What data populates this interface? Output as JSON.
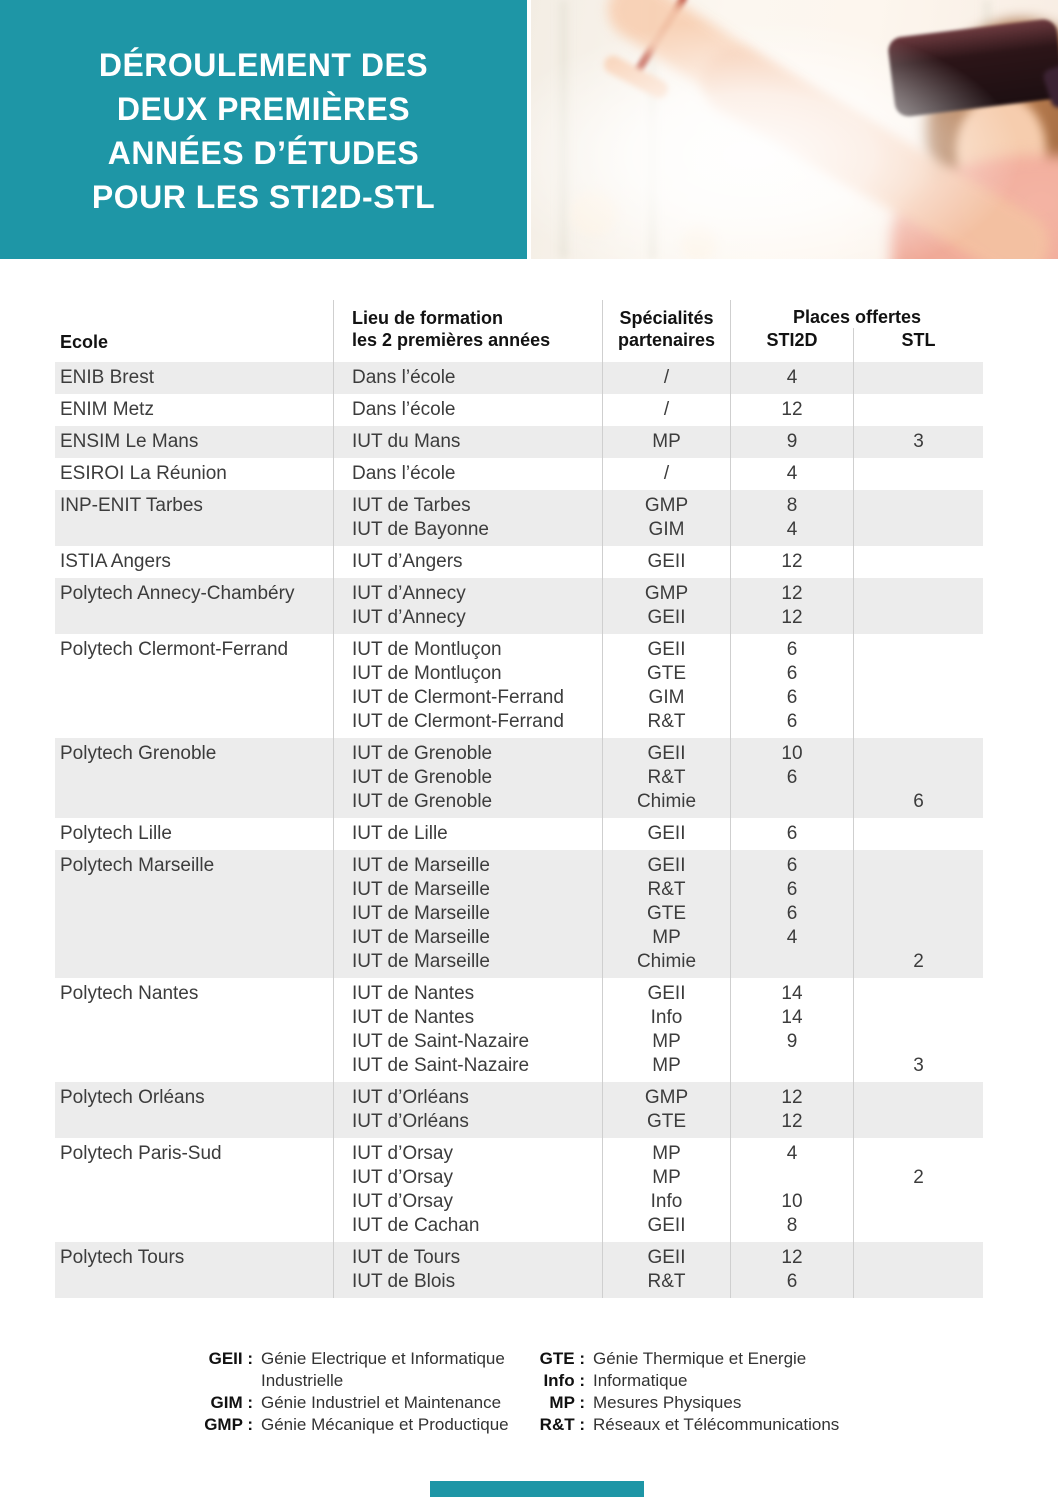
{
  "theme": {
    "accent_color": "#1e96a6",
    "row_shade_color": "#ececec",
    "divider_color": "#cfcfcf"
  },
  "header": {
    "title": "DÉROULEMENT DES\nDEUX PREMIÈRES\nANNÉES D’ÉTUDES\nPOUR LES STI2D-STL"
  },
  "table": {
    "columns": {
      "ecole": "Ecole",
      "lieu": "Lieu de formation\nles 2 premières années",
      "specialites": "Spécialités\npartenaires",
      "places": "Places offertes",
      "sti2d": "STI2D",
      "stl": "STL"
    },
    "rows": [
      {
        "ecole": "ENIB Brest",
        "shaded": true,
        "lines": [
          {
            "lieu": "Dans l’école",
            "spec": "/",
            "sti2d": "4",
            "stl": ""
          }
        ]
      },
      {
        "ecole": "ENIM Metz",
        "shaded": false,
        "lines": [
          {
            "lieu": "Dans l’école",
            "spec": "/",
            "sti2d": "12",
            "stl": ""
          }
        ]
      },
      {
        "ecole": "ENSIM Le Mans",
        "shaded": true,
        "lines": [
          {
            "lieu": "IUT du Mans",
            "spec": "MP",
            "sti2d": "9",
            "stl": "3"
          }
        ]
      },
      {
        "ecole": "ESIROI La Réunion",
        "shaded": false,
        "lines": [
          {
            "lieu": "Dans l’école",
            "spec": "/",
            "sti2d": "4",
            "stl": ""
          }
        ]
      },
      {
        "ecole": "INP-ENIT Tarbes",
        "shaded": true,
        "lines": [
          {
            "lieu": "IUT de Tarbes",
            "spec": "GMP",
            "sti2d": "8",
            "stl": ""
          },
          {
            "lieu": "IUT de Bayonne",
            "spec": "GIM",
            "sti2d": "4",
            "stl": ""
          }
        ]
      },
      {
        "ecole": "ISTIA Angers",
        "shaded": false,
        "lines": [
          {
            "lieu": "IUT d’Angers",
            "spec": "GEII",
            "sti2d": "12",
            "stl": ""
          }
        ]
      },
      {
        "ecole": "Polytech Annecy-Chambéry",
        "shaded": true,
        "lines": [
          {
            "lieu": "IUT d’Annecy",
            "spec": "GMP",
            "sti2d": "12",
            "stl": ""
          },
          {
            "lieu": "IUT d’Annecy",
            "spec": "GEII",
            "sti2d": "12",
            "stl": ""
          }
        ]
      },
      {
        "ecole": "Polytech Clermont-Ferrand",
        "shaded": false,
        "lines": [
          {
            "lieu": "IUT de Montluçon",
            "spec": "GEII",
            "sti2d": "6",
            "stl": ""
          },
          {
            "lieu": "IUT de Montluçon",
            "spec": "GTE",
            "sti2d": "6",
            "stl": ""
          },
          {
            "lieu": "IUT de Clermont-Ferrand",
            "spec": "GIM",
            "sti2d": "6",
            "stl": ""
          },
          {
            "lieu": "IUT de Clermont-Ferrand",
            "spec": "R&T",
            "sti2d": "6",
            "stl": ""
          }
        ]
      },
      {
        "ecole": "Polytech Grenoble",
        "shaded": true,
        "lines": [
          {
            "lieu": "IUT de Grenoble",
            "spec": "GEII",
            "sti2d": "10",
            "stl": ""
          },
          {
            "lieu": "IUT de Grenoble",
            "spec": "R&T",
            "sti2d": "6",
            "stl": ""
          },
          {
            "lieu": "IUT de Grenoble",
            "spec": "Chimie",
            "sti2d": "",
            "stl": "6"
          }
        ]
      },
      {
        "ecole": "Polytech Lille",
        "shaded": false,
        "lines": [
          {
            "lieu": "IUT de Lille",
            "spec": "GEII",
            "sti2d": "6",
            "stl": ""
          }
        ]
      },
      {
        "ecole": "Polytech Marseille",
        "shaded": true,
        "lines": [
          {
            "lieu": "IUT de Marseille",
            "spec": "GEII",
            "sti2d": "6",
            "stl": ""
          },
          {
            "lieu": "IUT de Marseille",
            "spec": "R&T",
            "sti2d": "6",
            "stl": ""
          },
          {
            "lieu": "IUT de Marseille",
            "spec": "GTE",
            "sti2d": "6",
            "stl": ""
          },
          {
            "lieu": "IUT de Marseille",
            "spec": "MP",
            "sti2d": "4",
            "stl": ""
          },
          {
            "lieu": "IUT de Marseille",
            "spec": "Chimie",
            "sti2d": "",
            "stl": "2"
          }
        ]
      },
      {
        "ecole": "Polytech Nantes",
        "shaded": false,
        "lines": [
          {
            "lieu": "IUT de Nantes",
            "spec": "GEII",
            "sti2d": "14",
            "stl": ""
          },
          {
            "lieu": "IUT de Nantes",
            "spec": "Info",
            "sti2d": "14",
            "stl": ""
          },
          {
            "lieu": "IUT de Saint-Nazaire",
            "spec": "MP",
            "sti2d": "9",
            "stl": ""
          },
          {
            "lieu": "IUT de Saint-Nazaire",
            "spec": "MP",
            "sti2d": "",
            "stl": "3"
          }
        ]
      },
      {
        "ecole": "Polytech Orléans",
        "shaded": true,
        "lines": [
          {
            "lieu": "IUT d’Orléans",
            "spec": "GMP",
            "sti2d": "12",
            "stl": ""
          },
          {
            "lieu": "IUT d’Orléans",
            "spec": "GTE",
            "sti2d": "12",
            "stl": ""
          }
        ]
      },
      {
        "ecole": "Polytech Paris-Sud",
        "shaded": false,
        "lines": [
          {
            "lieu": "IUT d’Orsay",
            "spec": "MP",
            "sti2d": "4",
            "stl": ""
          },
          {
            "lieu": "IUT d’Orsay",
            "spec": "MP",
            "sti2d": "",
            "stl": "2"
          },
          {
            "lieu": "IUT d’Orsay",
            "spec": "Info",
            "sti2d": "10",
            "stl": ""
          },
          {
            "lieu": "IUT de Cachan",
            "spec": "GEII",
            "sti2d": "8",
            "stl": ""
          }
        ]
      },
      {
        "ecole": "Polytech Tours",
        "shaded": true,
        "lines": [
          {
            "lieu": "IUT de Tours",
            "spec": "GEII",
            "sti2d": "12",
            "stl": ""
          },
          {
            "lieu": "IUT de Blois",
            "spec": "R&T",
            "sti2d": "6",
            "stl": ""
          }
        ]
      }
    ]
  },
  "legend": {
    "left": [
      {
        "term": "GEII",
        "def": "Génie Electrique et Informatique\nIndustrielle"
      },
      {
        "term": "GIM",
        "def": "Génie Industriel et Maintenance"
      },
      {
        "term": "GMP",
        "def": "Génie Mécanique et Productique"
      }
    ],
    "right": [
      {
        "term": "GTE",
        "def": "Génie Thermique et Energie"
      },
      {
        "term": "Info",
        "def": "Informatique"
      },
      {
        "term": "MP",
        "def": "Mesures Physiques"
      },
      {
        "term": "R&T",
        "def": "Réseaux et Télécommunications"
      }
    ]
  }
}
